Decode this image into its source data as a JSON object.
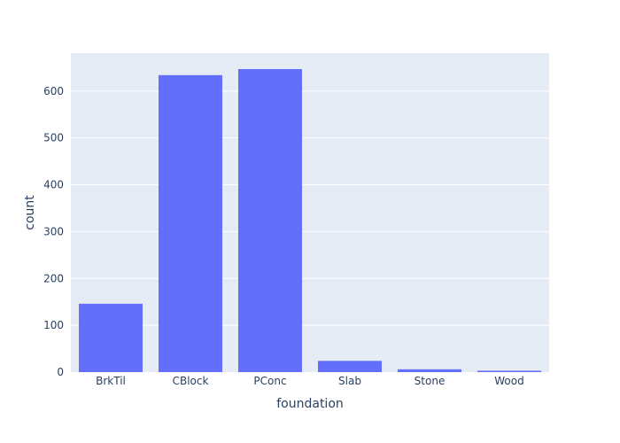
{
  "chart_data": {
    "type": "bar",
    "categories": [
      "BrkTil",
      "CBlock",
      "PConc",
      "Slab",
      "Stone",
      "Wood"
    ],
    "values": [
      146,
      634,
      647,
      24,
      6,
      3
    ],
    "xlabel": "foundation",
    "ylabel": "count",
    "ylim": [
      0,
      681
    ],
    "yticks": [
      0,
      100,
      200,
      300,
      400,
      500,
      600
    ],
    "grid": true,
    "colors": {
      "bar": "#636efa",
      "plot_bg": "#e5ecf6",
      "grid": "#ffffff",
      "text": "#2a3f5f"
    }
  }
}
